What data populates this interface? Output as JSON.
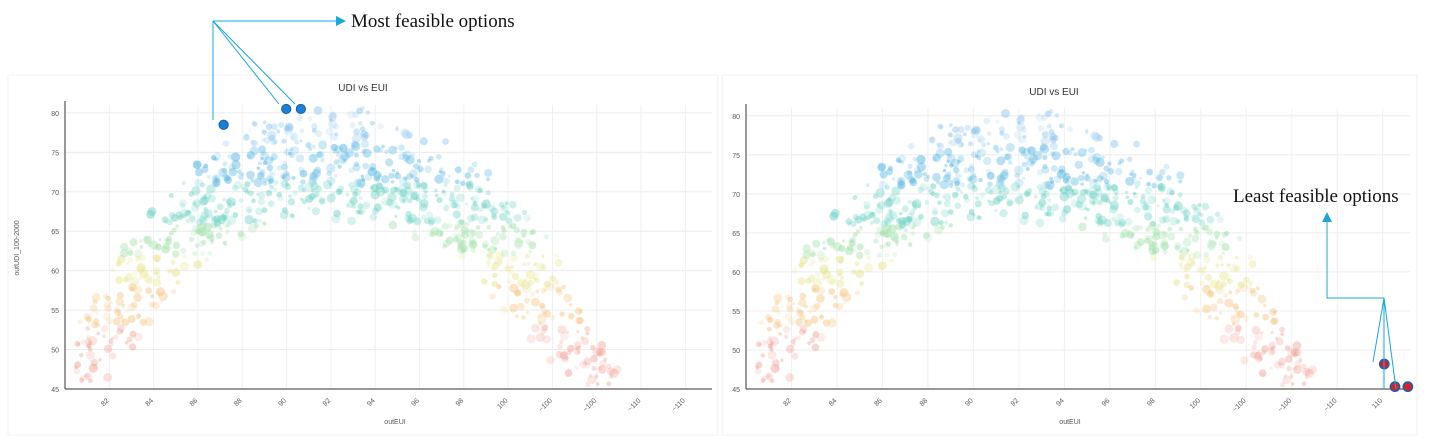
{
  "colors": {
    "annotation_line": "#1aa7dc",
    "highlight_blue": "#1c7fd4",
    "highlight_red": "#d9202a",
    "scale": [
      "#f2a79a",
      "#f6c88a",
      "#e6e48a",
      "#9fe0a8",
      "#6fd3c6",
      "#5ab8e4",
      "#8fc6ee"
    ]
  },
  "chart_data": [
    {
      "type": "scatter",
      "title": "UDI vs EUI",
      "xlabel": "outEUI",
      "ylabel": "outUDI_100-2000",
      "xlim": [
        80,
        111
      ],
      "ylim": [
        45,
        81
      ],
      "x_ticks": [
        "82",
        "84",
        "86",
        "88",
        "90",
        "92",
        "94",
        "96",
        "98",
        "100",
        "~100",
        "~100",
        "~110",
        "~110"
      ],
      "y_ticks": [
        "45",
        "50",
        "55",
        "60",
        "65",
        "70",
        "75",
        "80"
      ],
      "grid": true,
      "highlighted_points": [
        {
          "x": 87.6,
          "y": 78.5
        },
        {
          "x": 90.6,
          "y": 80.5
        },
        {
          "x": 91.3,
          "y": 80.5
        }
      ],
      "annotation": "Most feasible options"
    },
    {
      "type": "scatter",
      "title": "UDI vs EUI",
      "xlabel": "outEUI",
      "ylabel": "",
      "xlim": [
        80,
        111
      ],
      "ylim": [
        45,
        81
      ],
      "x_ticks": [
        "82",
        "84",
        "86",
        "88",
        "90",
        "92",
        "94",
        "96",
        "98",
        "100",
        "~100",
        "~100",
        "~110",
        "110"
      ],
      "y_ticks": [
        "45",
        "50",
        "55",
        "60",
        "65",
        "70",
        "75",
        "80"
      ],
      "grid": true,
      "highlighted_points": [
        {
          "x": 109.8,
          "y": 48.2
        },
        {
          "x": 110.3,
          "y": 45.3
        },
        {
          "x": 110.9,
          "y": 45.3
        }
      ],
      "annotation": "Least feasible options"
    }
  ]
}
